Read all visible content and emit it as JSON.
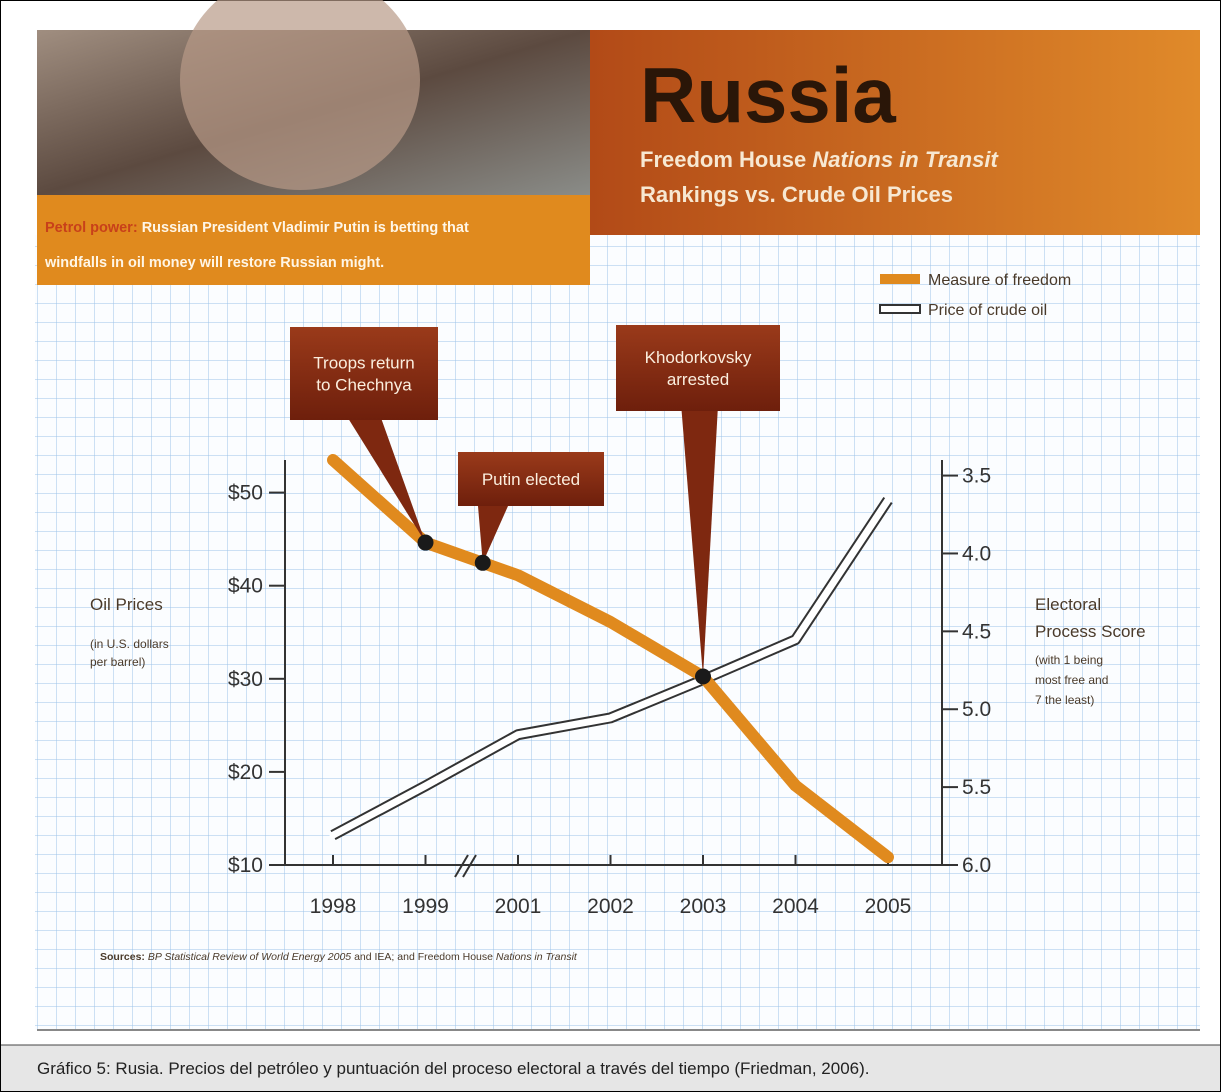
{
  "chart_data": {
    "type": "line",
    "title": "Russia",
    "subtitle": [
      [
        {
          "text": "Freedom House "
        },
        {
          "text": "Nations in Transit",
          "italic": true
        }
      ],
      [
        {
          "text": "Rankings vs. Crude Oil Prices"
        }
      ]
    ],
    "photo_caption": {
      "label": "Petrol power:",
      "lines": [
        "Russian President Vladimir Putin is betting that",
        "windfalls in oil money will restore Russian might."
      ]
    },
    "categories": [
      "1998",
      "1999",
      "2001",
      "2002",
      "2003",
      "2004",
      "2005"
    ],
    "series": [
      {
        "name": "Measure of freedom",
        "color": "#e08a1e",
        "axis": "y2",
        "values": [
          3.4,
          3.93,
          4.14,
          4.44,
          4.79,
          5.49,
          5.95
        ]
      },
      {
        "name": "Price of crude oil",
        "color": "#ffffff",
        "edge": "#333333",
        "values": [
          13.2,
          18.5,
          24.0,
          25.8,
          29.9,
          34.2,
          49.2
        ]
      }
    ],
    "y_label": [
      "Oil Prices",
      "(in U.S. dollars",
      "per barrel)"
    ],
    "y2_label": [
      "Electoral",
      "Process Score",
      "(with 1 being",
      "most free and",
      "7 the least)"
    ],
    "ylim": [
      10,
      53.5
    ],
    "yticks": [
      {
        "value": 10,
        "label": "$10"
      },
      {
        "value": 20,
        "label": "$20"
      },
      {
        "value": 30,
        "label": "$30"
      },
      {
        "value": 40,
        "label": "$40"
      },
      {
        "value": 50,
        "label": "$50"
      }
    ],
    "y2lim": [
      6,
      3.4
    ],
    "y2ticks": [
      3.5,
      {
        "value": 4,
        "label": "4.0"
      },
      4.5,
      {
        "value": 5,
        "label": "5.0"
      },
      5.5,
      {
        "value": 6,
        "label": "6.0"
      }
    ],
    "annotations": [
      {
        "text": [
          "Troops return",
          "to Chechnya"
        ],
        "value": 3.93
      },
      {
        "text": [
          "Putin elected"
        ],
        "value": 4.06
      },
      {
        "text": [
          "Khodorkovsky",
          "arrested"
        ],
        "value": 4.79
      }
    ],
    "sources": [
      {
        "text": "Sources: ",
        "bold": true
      },
      {
        "text": "BP Statistical Review of World Energy 2005",
        "italic": true
      },
      {
        "text": " and IEA; and Freedom House "
      },
      {
        "text": "Nations in Transit",
        "italic": true
      }
    ],
    "caption": "Gráfico 5: Rusia. Precios del petróleo y puntuación del proceso electoral a través del tiempo (Friedman, 2006)."
  }
}
